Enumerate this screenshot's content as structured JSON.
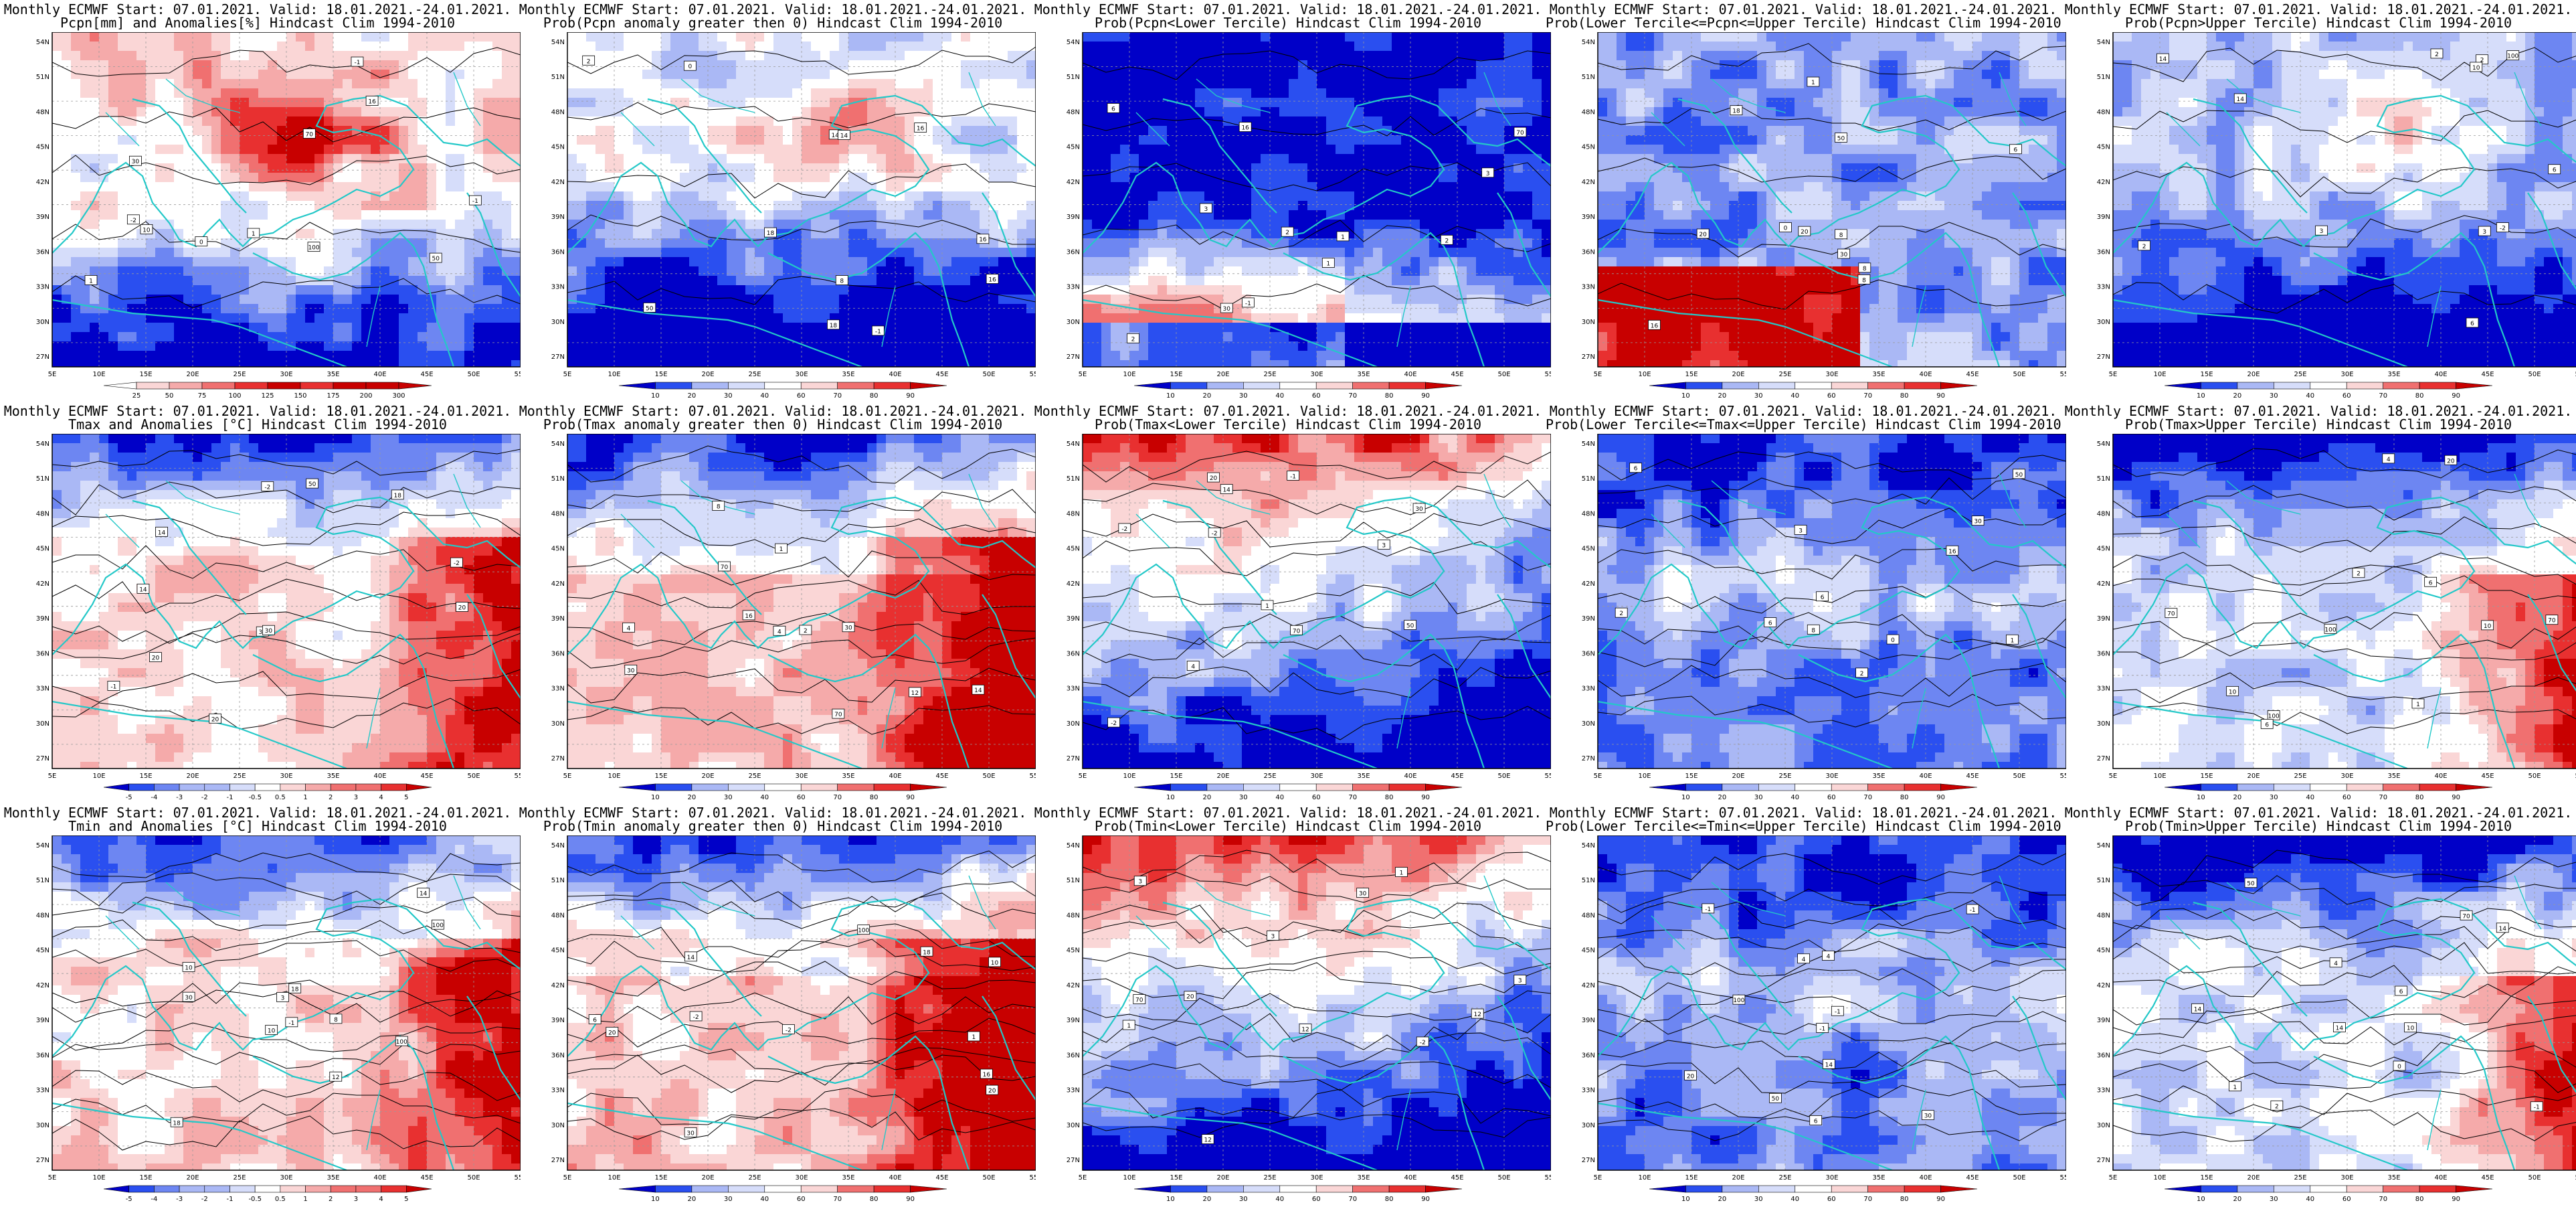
{
  "map": {
    "lat_labels": [
      "54N",
      "51N",
      "48N",
      "45N",
      "42N",
      "39N",
      "36N",
      "33N",
      "30N",
      "27N"
    ],
    "lon_labels": [
      "5E",
      "10E",
      "15E",
      "20E",
      "25E",
      "30E",
      "35E",
      "40E",
      "45E",
      "50E",
      "55E"
    ],
    "map_box_labels": [
      "-2",
      "-1",
      "0",
      "1",
      "2",
      "3",
      "4",
      "6",
      "8",
      "10",
      "12",
      "14",
      "16",
      "18",
      "20",
      "30",
      "50",
      "70",
      "100"
    ]
  },
  "legends": {
    "precip_amount": [
      "25",
      "50",
      "75",
      "100",
      "125",
      "150",
      "175",
      "200",
      "300"
    ],
    "temp_anomaly": [
      "-5",
      "-4",
      "-3",
      "-2",
      "-1",
      "-0.5",
      "0.5",
      "1",
      "2",
      "3",
      "4",
      "5"
    ],
    "probability": [
      "10",
      "20",
      "30",
      "40",
      "60",
      "70",
      "80",
      "90"
    ]
  },
  "colors": {
    "deep_blue": "#0000c8",
    "blue": "#2a4ff0",
    "mid_blue": "#6d86f2",
    "light_blue": "#aab8f5",
    "pale_blue": "#d6ddfa",
    "white": "#ffffff",
    "pale_red": "#fad6d6",
    "light_red": "#f5aaaa",
    "mid_red": "#f07070",
    "red": "#e83030",
    "dark_red": "#c80000",
    "coastline": "#23c8c8",
    "contour": "#000000"
  },
  "panels": [
    {
      "row": 0,
      "col": 0,
      "line1": "Monthly ECMWF Start: 07.01.2021. Valid: 18.01.2021.-24.01.2021.",
      "line2": "Pcpn[mm] and Anomalies[%] Hindcast Clim 1994-2010",
      "legend": "precip_amount",
      "scheme": "pcpn_anom"
    },
    {
      "row": 0,
      "col": 1,
      "line1": "Monthly ECMWF Start: 07.01.2021. Valid: 18.01.2021.-24.01.2021.",
      "line2": "Prob(Pcpn anomaly greater then 0) Hindcast Clim 1994-2010",
      "legend": "probability",
      "scheme": "pcpn_pos"
    },
    {
      "row": 0,
      "col": 2,
      "line1": "Monthly ECMWF Start: 07.01.2021. Valid: 18.01.2021.-24.01.2021.",
      "line2": "Prob(Pcpn<Lower Tercile) Hindcast Clim 1994-2010",
      "legend": "probability",
      "scheme": "pcpn_low"
    },
    {
      "row": 0,
      "col": 3,
      "line1": "Monthly ECMWF Start: 07.01.2021. Valid: 18.01.2021.-24.01.2021.",
      "line2": "Prob(Lower Tercile<=Pcpn<=Upper Tercile) Hindcast Clim 1994-2010",
      "legend": "probability",
      "scheme": "pcpn_mid"
    },
    {
      "row": 0,
      "col": 4,
      "line1": "Monthly ECMWF Start: 07.01.2021. Valid: 18.01.2021.-24.01.2021.",
      "line2": "Prob(Pcpn>Upper Tercile) Hindcast Clim 1994-2010",
      "legend": "probability",
      "scheme": "pcpn_up"
    },
    {
      "row": 1,
      "col": 0,
      "line1": "Monthly ECMWF Start: 07.01.2021. Valid: 18.01.2021.-24.01.2021.",
      "line2": "Tmax and Anomalies [°C] Hindcast Clim 1994-2010",
      "legend": "temp_anomaly",
      "scheme": "t_anom"
    },
    {
      "row": 1,
      "col": 1,
      "line1": "Monthly ECMWF Start: 07.01.2021. Valid: 18.01.2021.-24.01.2021.",
      "line2": "Prob(Tmax anomaly greater then 0) Hindcast Clim 1994-2010",
      "legend": "probability",
      "scheme": "t_pos"
    },
    {
      "row": 1,
      "col": 2,
      "line1": "Monthly ECMWF Start: 07.01.2021. Valid: 18.01.2021.-24.01.2021.",
      "line2": "Prob(Tmax<Lower Tercile) Hindcast Clim 1994-2010",
      "legend": "probability",
      "scheme": "t_low"
    },
    {
      "row": 1,
      "col": 3,
      "line1": "Monthly ECMWF Start: 07.01.2021. Valid: 18.01.2021.-24.01.2021.",
      "line2": "Prob(Lower Tercile<=Tmax<=Upper Tercile) Hindcast Clim 1994-2010",
      "legend": "probability",
      "scheme": "t_mid"
    },
    {
      "row": 1,
      "col": 4,
      "line1": "Monthly ECMWF Start: 07.01.2021. Valid: 18.01.2021.-24.01.2021.",
      "line2": "Prob(Tmax>Upper Tercile) Hindcast Clim 1994-2010",
      "legend": "probability",
      "scheme": "t_up"
    },
    {
      "row": 2,
      "col": 0,
      "line1": "Monthly ECMWF Start: 07.01.2021. Valid: 18.01.2021.-24.01.2021.",
      "line2": "Tmin and Anomalies [°C] Hindcast Clim 1994-2010",
      "legend": "temp_anomaly",
      "scheme": "t_anom"
    },
    {
      "row": 2,
      "col": 1,
      "line1": "Monthly ECMWF Start: 07.01.2021. Valid: 18.01.2021.-24.01.2021.",
      "line2": "Prob(Tmin anomaly greater then 0) Hindcast Clim 1994-2010",
      "legend": "probability",
      "scheme": "t_pos"
    },
    {
      "row": 2,
      "col": 2,
      "line1": "Monthly ECMWF Start: 07.01.2021. Valid: 18.01.2021.-24.01.2021.",
      "line2": "Prob(Tmin<Lower Tercile) Hindcast Clim 1994-2010",
      "legend": "probability",
      "scheme": "t_low"
    },
    {
      "row": 2,
      "col": 3,
      "line1": "Monthly ECMWF Start: 07.01.2021. Valid: 18.01.2021.-24.01.2021.",
      "line2": "Prob(Lower Tercile<=Tmin<=Upper Tercile) Hindcast Clim 1994-2010",
      "legend": "probability",
      "scheme": "t_mid"
    },
    {
      "row": 2,
      "col": 4,
      "line1": "Monthly ECMWF Start: 07.01.2021. Valid: 18.01.2021.-24.01.2021.",
      "line2": "Prob(Tmin>Upper Tercile) Hindcast Clim 1994-2010",
      "legend": "probability",
      "scheme": "t_up"
    }
  ]
}
